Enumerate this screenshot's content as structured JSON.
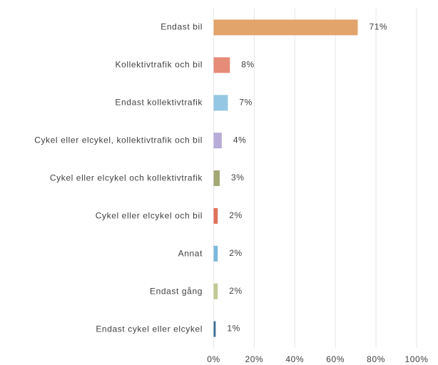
{
  "chart_data": {
    "type": "barh",
    "categories": [
      "Endast bil",
      "Kollektivtrafik och bil",
      "Endast kollektivtrafik",
      "Cykel eller elcykel, kollektivtrafik och bil",
      "Cykel eller elcykel och kollektivtrafik",
      "Cykel eller elcykel och bil",
      "Annat",
      "Endast gång",
      "Endast cykel eller elcykel"
    ],
    "values": [
      71,
      8,
      7,
      4,
      3,
      2,
      2,
      2,
      1
    ],
    "value_labels": [
      "71%",
      "8%",
      "7%",
      "4%",
      "3%",
      "2%",
      "2%",
      "2%",
      "1%"
    ],
    "colors": [
      "#e3a46c",
      "#e58b78",
      "#93c7e4",
      "#b8acd8",
      "#a3a774",
      "#e0705a",
      "#7ab8dd",
      "#c1c994",
      "#3f6f94"
    ],
    "xlim": [
      0,
      100
    ],
    "xticks": [
      {
        "value": 0,
        "label": "0%"
      },
      {
        "value": 20,
        "label": "20%"
      },
      {
        "value": 40,
        "label": "40%"
      },
      {
        "value": 60,
        "label": "60%"
      },
      {
        "value": 80,
        "label": "80%"
      },
      {
        "value": 100,
        "label": "100%"
      }
    ],
    "grid": true
  }
}
